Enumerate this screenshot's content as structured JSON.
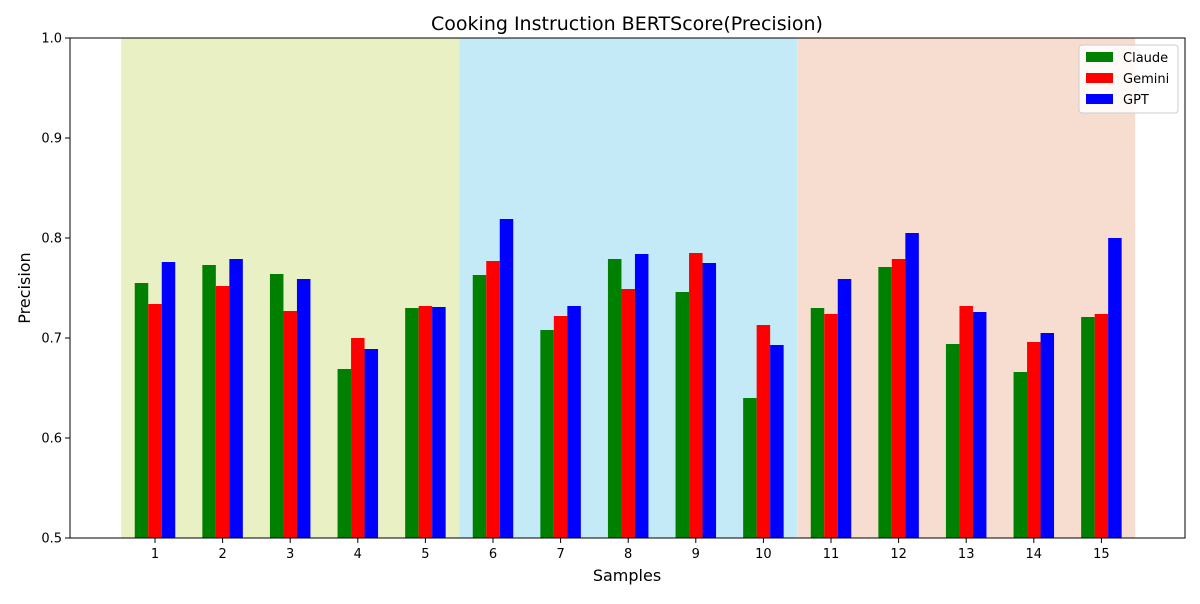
{
  "chart_data": {
    "type": "bar",
    "title": "Cooking Instruction BERTScore(Precision)",
    "xlabel": "Samples",
    "ylabel": "Precision",
    "ylim": [
      0.5,
      1.0
    ],
    "yticks": [
      "0.5",
      "0.6",
      "0.7",
      "0.8",
      "0.9",
      "1.0"
    ],
    "categories": [
      "1",
      "2",
      "3",
      "4",
      "5",
      "6",
      "7",
      "8",
      "9",
      "10",
      "11",
      "12",
      "13",
      "14",
      "15"
    ],
    "series": [
      {
        "name": "Claude",
        "color": "#008000",
        "values": [
          0.755,
          0.773,
          0.764,
          0.669,
          0.73,
          0.763,
          0.708,
          0.779,
          0.746,
          0.64,
          0.73,
          0.771,
          0.694,
          0.666,
          0.721
        ]
      },
      {
        "name": "Gemini",
        "color": "#ff0000",
        "values": [
          0.734,
          0.752,
          0.727,
          0.7,
          0.732,
          0.777,
          0.722,
          0.749,
          0.785,
          0.713,
          0.724,
          0.779,
          0.732,
          0.696,
          0.724
        ]
      },
      {
        "name": "GPT",
        "color": "#0000ff",
        "values": [
          0.776,
          0.779,
          0.759,
          0.689,
          0.731,
          0.819,
          0.732,
          0.784,
          0.775,
          0.693,
          0.759,
          0.805,
          0.726,
          0.705,
          0.8
        ]
      }
    ],
    "background_bands": [
      {
        "from_category": "1",
        "to_category": "5",
        "color": "#e8f0c4"
      },
      {
        "from_category": "6",
        "to_category": "10",
        "color": "#c4eaf8"
      },
      {
        "from_category": "11",
        "to_category": "15",
        "color": "#f7ddd0"
      }
    ],
    "legend_position": "top-right",
    "grid": false
  }
}
